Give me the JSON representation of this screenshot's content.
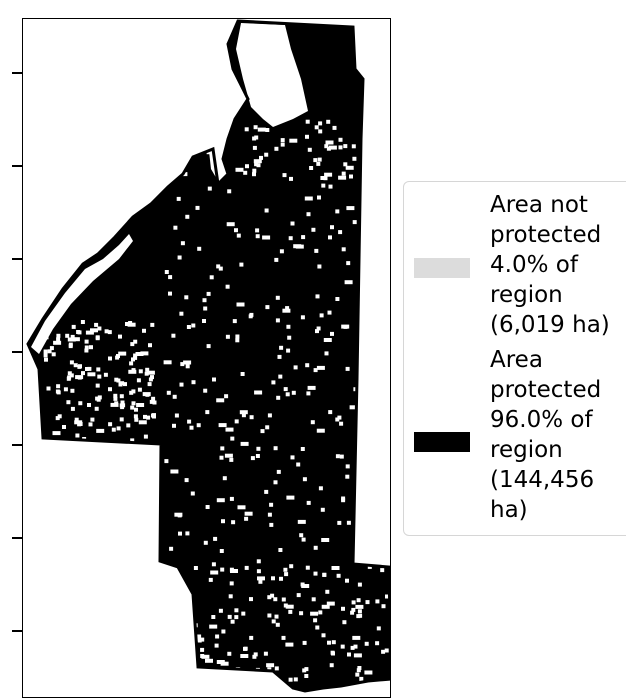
{
  "map": {
    "colors": {
      "protected": "#000000",
      "not_protected": "#ffffff",
      "background": "#ffffff"
    }
  },
  "legend": {
    "items": [
      {
        "label": "Area not\nprotected\n4.0% of\nregion\n(6,019 ha)",
        "color": "#dcdcdc",
        "percent": 4.0,
        "area_ha": "6,019"
      },
      {
        "label": "Area\nprotected\n96.0% of\nregion\n(144,456\nha)",
        "color": "#000000",
        "percent": 96.0,
        "area_ha": "144,456"
      }
    ]
  }
}
